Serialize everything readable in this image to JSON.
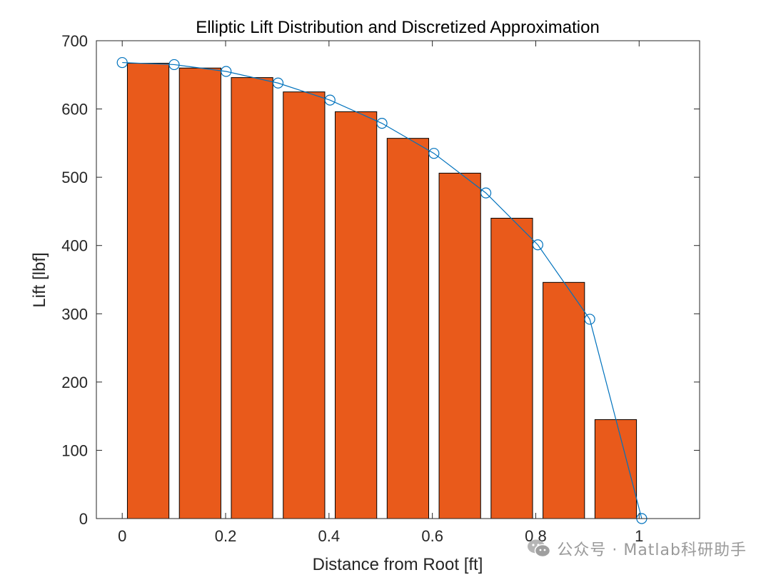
{
  "chart_data": {
    "type": "bar",
    "title": "Elliptic Lift Distribution and Discretized Approximation",
    "xlabel": "Distance from Root [ft]",
    "ylabel": "Lift [lbf]",
    "xlim": [
      -0.05,
      1.117
    ],
    "ylim": [
      0,
      700
    ],
    "xticks": [
      0,
      0.2,
      0.4,
      0.6,
      0.8,
      1
    ],
    "xtick_labels": [
      "0",
      "0.2",
      "0.4",
      "0.6",
      "0.8",
      "1"
    ],
    "yticks": [
      0,
      100,
      200,
      300,
      400,
      500,
      600,
      700
    ],
    "ytick_labels": [
      "0",
      "100",
      "200",
      "300",
      "400",
      "500",
      "600",
      "700"
    ],
    "grid": false,
    "bars": {
      "color": "#E95A1B",
      "edge_color": "#000000",
      "width": 0.0804,
      "x": [
        0.0502,
        0.1507,
        0.2512,
        0.3517,
        0.4522,
        0.5527,
        0.6532,
        0.7537,
        0.8542,
        0.9547
      ],
      "values": [
        667,
        660,
        646,
        625,
        596,
        557,
        506,
        440,
        346,
        145
      ]
    },
    "line": {
      "color": "#0072BD",
      "marker": "circle",
      "x": [
        0,
        0.1005,
        0.201,
        0.3015,
        0.402,
        0.5025,
        0.603,
        0.7035,
        0.804,
        0.9045,
        1.005
      ],
      "values": [
        668,
        665,
        655,
        638,
        613,
        579,
        535,
        477,
        401,
        292,
        0
      ]
    }
  },
  "watermark": {
    "text": "公众号 · Matlab科研助手",
    "icon": "wechat-icon"
  }
}
